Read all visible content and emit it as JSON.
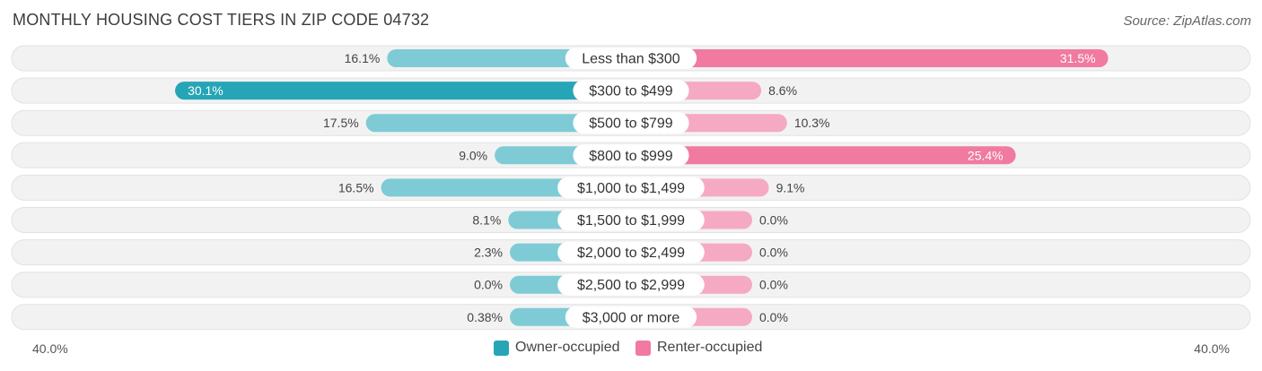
{
  "title": "MONTHLY HOUSING COST TIERS IN ZIP CODE 04732",
  "source": "Source: ZipAtlas.com",
  "colors": {
    "owner_dark": "#26a5b7",
    "owner_light": "#7ecbd6",
    "renter_dark": "#f07aa0",
    "renter_light": "#f6a9c2",
    "row_bg": "#efefef"
  },
  "chart_data": {
    "type": "bar",
    "orientation": "horizontal-diverging",
    "xlim": [
      -40,
      40
    ],
    "axis_labels": {
      "left": "40.0%",
      "right": "40.0%"
    },
    "legend": {
      "placement": "bottom-center"
    },
    "categories": [
      "Less than $300",
      "$300 to $499",
      "$500 to $799",
      "$800 to $999",
      "$1,000 to $1,499",
      "$1,500 to $1,999",
      "$2,000 to $2,499",
      "$2,500 to $2,999",
      "$3,000 or more"
    ],
    "series": [
      {
        "name": "Owner-occupied",
        "values": [
          16.1,
          30.1,
          17.5,
          9.0,
          16.5,
          8.1,
          2.3,
          0.0,
          0.38
        ],
        "labels": [
          "16.1%",
          "30.1%",
          "17.5%",
          "9.0%",
          "16.5%",
          "8.1%",
          "2.3%",
          "0.0%",
          "0.38%"
        ]
      },
      {
        "name": "Renter-occupied",
        "values": [
          31.5,
          8.6,
          10.3,
          25.4,
          9.1,
          0.0,
          0.0,
          0.0,
          0.0
        ],
        "labels": [
          "31.5%",
          "8.6%",
          "10.3%",
          "25.4%",
          "9.1%",
          "0.0%",
          "0.0%",
          "0.0%",
          "0.0%"
        ]
      }
    ]
  }
}
